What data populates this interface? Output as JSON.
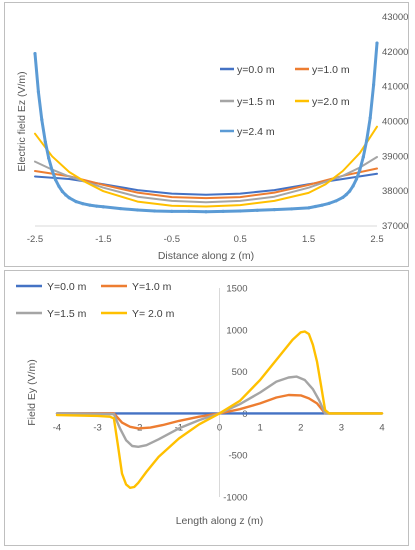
{
  "chart_data": [
    {
      "type": "line",
      "title": "",
      "xlabel": "Distance along z (m)",
      "ylabel": "Electric field Ez (V/m)",
      "xlim": [
        -2.5,
        2.5
      ],
      "ylim": [
        37000,
        43000
      ],
      "xticks": [
        "-2.5",
        "-1.5",
        "-0.5",
        "0.5",
        "1.5",
        "2.5"
      ],
      "yticks": [
        "37000",
        "38000",
        "39000",
        "40000",
        "41000",
        "42000",
        "43000"
      ],
      "grid": false,
      "legend_position": "right",
      "series": [
        {
          "name": "y=0.0 m",
          "color": "#4472c4",
          "x": [
            -2.5,
            -2.0,
            -1.5,
            -1.0,
            -0.5,
            0.0,
            0.5,
            1.0,
            1.5,
            2.0,
            2.5
          ],
          "y": [
            38420,
            38350,
            38200,
            38030,
            37930,
            37900,
            37930,
            38030,
            38200,
            38350,
            38500
          ]
        },
        {
          "name": "y=1.0 m",
          "color": "#ed7d31",
          "x": [
            -2.5,
            -2.0,
            -1.5,
            -1.0,
            -0.5,
            0.0,
            0.5,
            1.0,
            1.5,
            2.0,
            2.5
          ],
          "y": [
            38580,
            38430,
            38180,
            37960,
            37830,
            37800,
            37830,
            37960,
            38180,
            38440,
            38650
          ]
        },
        {
          "name": "y=1.5 m",
          "color": "#a5a5a5",
          "x": [
            -2.5,
            -2.25,
            -2.0,
            -1.5,
            -1.0,
            -0.5,
            0.0,
            0.5,
            1.0,
            1.5,
            2.0,
            2.25,
            2.5
          ],
          "y": [
            38850,
            38620,
            38420,
            38100,
            37840,
            37720,
            37680,
            37720,
            37840,
            38100,
            38440,
            38680,
            38980
          ]
        },
        {
          "name": "y=2.0 m",
          "color": "#ffc000",
          "x": [
            -2.5,
            -2.25,
            -2.0,
            -1.75,
            -1.5,
            -1.0,
            -0.5,
            0.0,
            0.5,
            1.0,
            1.5,
            1.75,
            2.0,
            2.25,
            2.5
          ],
          "y": [
            39650,
            39000,
            38550,
            38250,
            38000,
            37700,
            37580,
            37560,
            37600,
            37720,
            37950,
            38200,
            38580,
            39100,
            39850
          ]
        },
        {
          "name": "y=2.4 m",
          "color": "#5b9bd5",
          "marker": true,
          "x": [
            -2.5,
            -2.45,
            -2.4,
            -2.35,
            -2.3,
            -2.25,
            -2.2,
            -2.15,
            -2.1,
            -2.05,
            -2.0,
            -1.9,
            -1.8,
            -1.7,
            -1.6,
            -1.5,
            -1.25,
            -1.0,
            -0.75,
            -0.5,
            -0.25,
            0.0,
            0.25,
            0.5,
            0.75,
            1.0,
            1.25,
            1.5,
            1.6,
            1.7,
            1.8,
            1.9,
            2.0,
            2.05,
            2.1,
            2.15,
            2.2,
            2.25,
            2.3,
            2.35,
            2.4,
            2.45,
            2.5
          ],
          "y": [
            41950,
            40850,
            40050,
            39420,
            38950,
            38600,
            38330,
            38140,
            37990,
            37890,
            37810,
            37700,
            37640,
            37600,
            37570,
            37550,
            37500,
            37460,
            37430,
            37420,
            37420,
            37410,
            37420,
            37430,
            37450,
            37470,
            37490,
            37520,
            37560,
            37600,
            37650,
            37720,
            37820,
            37900,
            38000,
            38150,
            38350,
            38620,
            38980,
            39460,
            40100,
            41050,
            42250
          ]
        }
      ]
    },
    {
      "type": "line",
      "title": "",
      "xlabel": "Length along z (m)",
      "ylabel": "Field Ey (V/m)",
      "xlim": [
        -4,
        4
      ],
      "ylim": [
        -1000,
        1500
      ],
      "xticks": [
        "-4",
        "-3",
        "-2",
        "-1",
        "0",
        "1",
        "2",
        "3",
        "4"
      ],
      "yticks": [
        "-1000",
        "-500",
        "0",
        "500",
        "1000",
        "1500"
      ],
      "grid": false,
      "legend_position": "top-left",
      "series": [
        {
          "name": "Y=0.0 m",
          "color": "#4472c4",
          "x": [
            -4,
            -3,
            -2,
            -1,
            0,
            1,
            2,
            3,
            4
          ],
          "y": [
            0,
            0,
            0,
            0,
            0,
            0,
            0,
            0,
            0
          ]
        },
        {
          "name": "Y=1.0 m",
          "color": "#ed7d31",
          "x": [
            -4,
            -2.6,
            -2.4,
            -2.2,
            -2.0,
            -1.7,
            -1.4,
            -1.0,
            -0.5,
            0.0,
            0.5,
            1.0,
            1.4,
            1.7,
            2.0,
            2.2,
            2.4,
            2.6,
            4
          ],
          "y": [
            0,
            0,
            -110,
            -160,
            -180,
            -170,
            -140,
            -90,
            -40,
            0,
            50,
            120,
            190,
            220,
            215,
            180,
            120,
            0,
            0
          ]
        },
        {
          "name": "Y=1.5 m",
          "color": "#a5a5a5",
          "x": [
            -4,
            -2.6,
            -2.45,
            -2.3,
            -2.15,
            -2.0,
            -1.8,
            -1.5,
            -1.0,
            -0.5,
            0.0,
            0.5,
            1.0,
            1.4,
            1.7,
            1.9,
            2.1,
            2.3,
            2.45,
            2.6,
            4
          ],
          "y": [
            0,
            -10,
            -180,
            -320,
            -390,
            -400,
            -380,
            -310,
            -180,
            -80,
            0,
            110,
            250,
            380,
            430,
            440,
            400,
            290,
            160,
            0,
            0
          ]
        },
        {
          "name": "Y= 2.0 m",
          "color": "#ffc000",
          "x": [
            -4,
            -3.0,
            -2.7,
            -2.6,
            -2.5,
            -2.4,
            -2.3,
            -2.2,
            -2.1,
            -2.0,
            -1.8,
            -1.5,
            -1.0,
            -0.5,
            0.0,
            0.5,
            1.0,
            1.5,
            1.8,
            2.0,
            2.1,
            2.2,
            2.3,
            2.4,
            2.5,
            2.6,
            2.7,
            3.0,
            4
          ],
          "y": [
            -20,
            -30,
            -40,
            -60,
            -380,
            -720,
            -850,
            -890,
            -880,
            -830,
            -700,
            -520,
            -300,
            -130,
            0,
            150,
            400,
            700,
            880,
            970,
            980,
            950,
            820,
            620,
            330,
            40,
            0,
            0,
            0
          ]
        }
      ]
    }
  ]
}
